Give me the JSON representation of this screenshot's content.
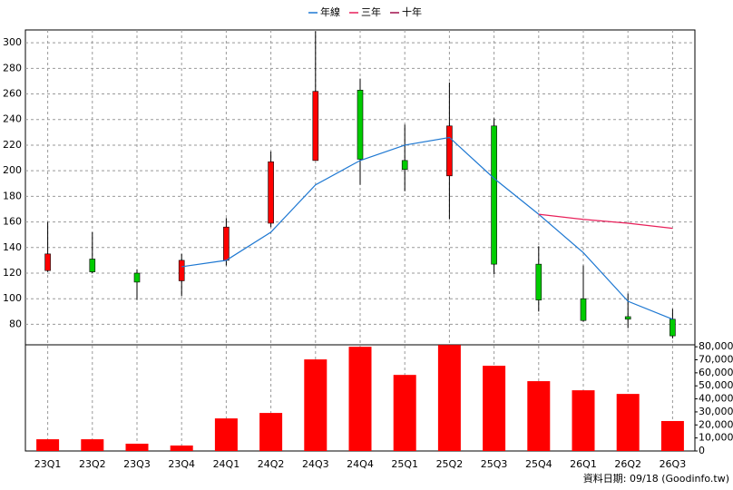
{
  "chart_data": [
    {
      "type": "candlestick",
      "categories": [
        "23Q1",
        "23Q2",
        "23Q3",
        "23Q4",
        "24Q1",
        "24Q2",
        "24Q3",
        "24Q4",
        "25Q1",
        "25Q2",
        "25Q3",
        "25Q4",
        "26Q1",
        "26Q2",
        "26Q3"
      ],
      "open": [
        122,
        131,
        120,
        114,
        130,
        159,
        208,
        263,
        208,
        196,
        235,
        127,
        100,
        86,
        84
      ],
      "high": [
        160,
        152,
        123,
        135,
        163,
        215,
        309,
        272,
        236,
        269,
        241,
        141,
        126,
        104,
        92
      ],
      "low": [
        121,
        120,
        99,
        102,
        126,
        156,
        208,
        189,
        184,
        162,
        119,
        90,
        82,
        77,
        69
      ],
      "close": [
        135,
        121,
        113,
        130,
        156,
        207,
        262,
        209,
        201,
        235,
        127,
        99,
        83,
        84,
        71
      ],
      "up_color": "#ff0000",
      "down_color": "#00cc00",
      "series": [
        {
          "name": "年線",
          "color": "#1e78d2",
          "values": [
            null,
            null,
            null,
            125,
            130,
            152,
            189,
            208,
            220,
            226,
            194,
            166,
            136,
            98,
            84
          ]
        },
        {
          "name": "三年",
          "color": "#e8205a",
          "values": [
            null,
            null,
            null,
            null,
            null,
            null,
            null,
            null,
            null,
            null,
            null,
            166,
            162,
            159,
            155
          ]
        },
        {
          "name": "十年",
          "color": "#a0104a",
          "values": [
            null,
            null,
            null,
            null,
            null,
            null,
            null,
            null,
            null,
            null,
            null,
            null,
            null,
            null,
            null
          ]
        }
      ],
      "ylim": [
        64,
        310
      ],
      "yticks": [
        80,
        100,
        120,
        140,
        160,
        180,
        200,
        220,
        240,
        260,
        280,
        300
      ],
      "grid": true,
      "legend": "top"
    },
    {
      "type": "bar",
      "color": "#ff0000",
      "values": [
        9000,
        9000,
        5600,
        4200,
        25000,
        29200,
        70300,
        80000,
        58400,
        81400,
        65400,
        53600,
        46600,
        43800,
        23000
      ],
      "ylim": [
        0,
        81500
      ],
      "yticks": [
        0,
        {
          "value": 10000,
          "label": "10,000"
        },
        {
          "value": 20000,
          "label": "20,000"
        },
        {
          "value": 30000,
          "label": "30,000"
        },
        {
          "value": 40000,
          "label": "40,000"
        },
        {
          "value": 50000,
          "label": "50,000"
        },
        {
          "value": 60000,
          "label": "60,000"
        },
        {
          "value": 70000,
          "label": "70,000"
        },
        {
          "value": 80000,
          "label": "80,000"
        }
      ],
      "grid": true
    }
  ],
  "footer": "資料日期: 09/18  (Goodinfo.tw)"
}
